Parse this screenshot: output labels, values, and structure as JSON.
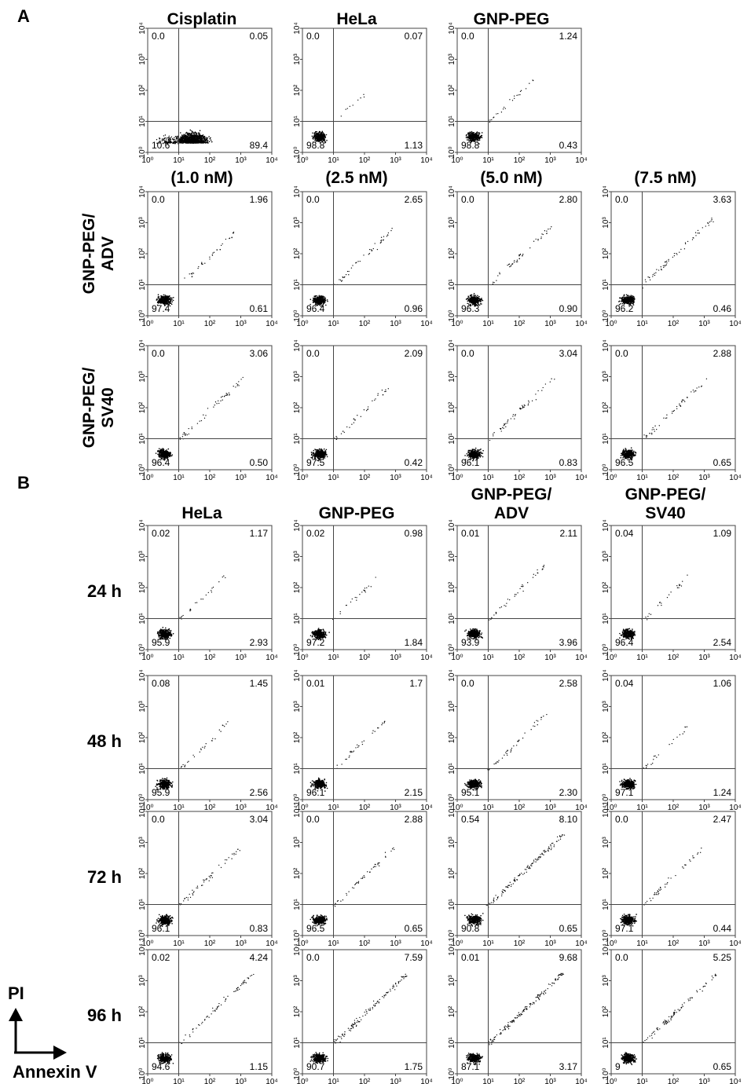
{
  "figure": {
    "panel_a_label": "A",
    "panel_b_label": "B",
    "axis_legend": {
      "y": "PI",
      "x": "Annexin V"
    }
  },
  "chart_data": {
    "type": "scatter",
    "xscale": "log",
    "yscale": "log",
    "xlim": [
      1,
      10000
    ],
    "ylim": [
      1,
      10000
    ],
    "tick_labels": [
      "10⁰",
      "10¹",
      "10²",
      "10³",
      "10⁴"
    ],
    "gate": {
      "x": 10,
      "y": 10
    },
    "panel_a": {
      "row_labels": [
        "",
        "GNP-PEG/\nADV",
        "GNP-PEG/\nSV40"
      ],
      "column_titles": [
        [
          "Cisplatin",
          "HeLa",
          "GNP-PEG",
          ""
        ],
        [
          "(1.0 nM)",
          "(2.5 nM)",
          "(5.0 nM)",
          "(7.5 nM)"
        ],
        [
          "",
          "",
          "",
          ""
        ]
      ],
      "quadrants": [
        [
          {
            "ul": "0.0",
            "ur": "0.05",
            "ll": "10.6",
            "lr": "89.4",
            "pattern": "cisplatin"
          },
          {
            "ul": "0.0",
            "ur": "0.07",
            "ll": "98.8",
            "lr": "1.13",
            "pattern": "viable"
          },
          {
            "ul": "0.0",
            "ur": "1.24",
            "ll": "98.8",
            "lr": "0.43",
            "pattern": "viable"
          },
          null
        ],
        [
          {
            "ul": "0.0",
            "ur": "1.96",
            "ll": "97.4",
            "lr": "0.61",
            "pattern": "viable"
          },
          {
            "ul": "0.0",
            "ur": "2.65",
            "ll": "96.4",
            "lr": "0.96",
            "pattern": "viable"
          },
          {
            "ul": "0.0",
            "ur": "2.80",
            "ll": "96.3",
            "lr": "0.90",
            "pattern": "viable"
          },
          {
            "ul": "0.0",
            "ur": "3.63",
            "ll": "96.2",
            "lr": "0.46",
            "pattern": "viable"
          }
        ],
        [
          {
            "ul": "0.0",
            "ur": "3.06",
            "ll": "96.4",
            "lr": "0.50",
            "pattern": "viable"
          },
          {
            "ul": "0.0",
            "ur": "2.09",
            "ll": "97.5",
            "lr": "0.42",
            "pattern": "viable"
          },
          {
            "ul": "0.0",
            "ur": "3.04",
            "ll": "96.1",
            "lr": "0.83",
            "pattern": "viable"
          },
          {
            "ul": "0.0",
            "ur": "2.88",
            "ll": "96.5",
            "lr": "0.65",
            "pattern": "viable"
          }
        ]
      ]
    },
    "panel_b": {
      "column_titles": [
        "HeLa",
        "GNP-PEG",
        "GNP-PEG/\nADV",
        "GNP-PEG/\nSV40"
      ],
      "row_labels": [
        "24 h",
        "48 h",
        "72 h",
        "96 h"
      ],
      "quadrants": [
        [
          {
            "ul": "0.02",
            "ur": "1.17",
            "ll": "95.9",
            "lr": "2.93"
          },
          {
            "ul": "0.02",
            "ur": "0.98",
            "ll": "97.2",
            "lr": "1.84"
          },
          {
            "ul": "0.01",
            "ur": "2.11",
            "ll": "93.9",
            "lr": "3.96"
          },
          {
            "ul": "0.04",
            "ur": "1.09",
            "ll": "96.4",
            "lr": "2.54"
          }
        ],
        [
          {
            "ul": "0.08",
            "ur": "1.45",
            "ll": "95.9",
            "lr": "2.56"
          },
          {
            "ul": "0.01",
            "ur": "1.7",
            "ll": "96.1",
            "lr": "2.15"
          },
          {
            "ul": "0.0",
            "ur": "2.58",
            "ll": "95.1",
            "lr": "2.30"
          },
          {
            "ul": "0.04",
            "ur": "1.06",
            "ll": "97.1",
            "lr": "1.24"
          }
        ],
        [
          {
            "ul": "0.0",
            "ur": "3.04",
            "ll": "96.1",
            "lr": "0.83"
          },
          {
            "ul": "0.0",
            "ur": "2.88",
            "ll": "96.5",
            "lr": "0.65"
          },
          {
            "ul": "0.54",
            "ur": "8.10",
            "ll": "90.8",
            "lr": "0.65"
          },
          {
            "ul": "0.0",
            "ur": "2.47",
            "ll": "97.1",
            "lr": "0.44"
          }
        ],
        [
          {
            "ul": "0.02",
            "ur": "4.24",
            "ll": "94.6",
            "lr": "1.15"
          },
          {
            "ul": "0.0",
            "ur": "7.59",
            "ll": "90.7",
            "lr": "1.75"
          },
          {
            "ul": "0.01",
            "ur": "9.68",
            "ll": "87.1",
            "lr": "3.17"
          },
          {
            "ul": "0.0",
            "ur": "5.25",
            "ll": "9",
            "lr": "0.65"
          }
        ]
      ]
    }
  }
}
